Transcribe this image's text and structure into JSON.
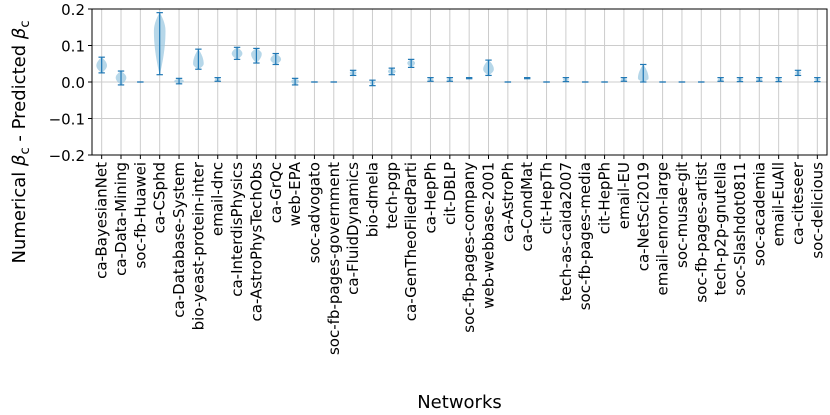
{
  "chart_data": {
    "type": "violin",
    "xlabel": "Networks",
    "ylabel_parts": [
      "Numerical ",
      "β",
      "c",
      " - Predicted ",
      "β",
      "c"
    ],
    "ylim": [
      -0.2,
      0.2
    ],
    "yticks": [
      -0.2,
      -0.1,
      0.0,
      0.1,
      0.2
    ],
    "ytick_labels": [
      "−0.2",
      "−0.1",
      "0.0",
      "0.1",
      "0.2"
    ],
    "grid": true,
    "colors": {
      "violin": "#9ecae1",
      "line": "#1f77b4",
      "grid": "#cccccc"
    },
    "categories": [
      "ca-BayesianNet",
      "ca-Data-Mining",
      "soc-fb-Huawei",
      "ca-CSphd",
      "ca-Database-System",
      "bio-yeast-protein-inter",
      "email-dnc",
      "ca-InterdisPhysics",
      "ca-AstroPhysTechObs",
      "ca-GrQc",
      "web-EPA",
      "soc-advogato",
      "soc-fb-pages-government",
      "ca-FluidDynamics",
      "bio-dmela",
      "tech-pgp",
      "ca-GenTheoFiledParti",
      "ca-HepPh",
      "cit-DBLP",
      "soc-fb-pages-company",
      "web-webbase-2001",
      "ca-AstroPh",
      "ca-CondMat",
      "cit-HepTh",
      "tech-as-caida2007",
      "soc-fb-pages-media",
      "cit-HepPh",
      "email-EU",
      "ca-NetSci2019",
      "email-enron-large",
      "soc-musae-git",
      "soc-fb-pages-artist",
      "tech-p2p-gnutella",
      "soc-Slashdot0811",
      "soc-academia",
      "email-EuAll",
      "ca-citeseer",
      "soc-delicious"
    ],
    "series": [
      {
        "min": 0.025,
        "max": 0.068,
        "median": 0.045,
        "w": 0.55
      },
      {
        "min": -0.008,
        "max": 0.03,
        "median": 0.012,
        "w": 0.55
      },
      {
        "min": 0.0,
        "max": 0.0,
        "median": 0.0,
        "w": 0.0
      },
      {
        "min": 0.02,
        "max": 0.19,
        "median": 0.14,
        "w": 0.6
      },
      {
        "min": -0.005,
        "max": 0.01,
        "median": 0.002,
        "w": 0.5
      },
      {
        "min": 0.035,
        "max": 0.09,
        "median": 0.05,
        "w": 0.55
      },
      {
        "min": 0.002,
        "max": 0.012,
        "median": 0.007,
        "w": 0.3
      },
      {
        "min": 0.062,
        "max": 0.095,
        "median": 0.078,
        "w": 0.55
      },
      {
        "min": 0.052,
        "max": 0.092,
        "median": 0.077,
        "w": 0.55
      },
      {
        "min": 0.048,
        "max": 0.078,
        "median": 0.062,
        "w": 0.55
      },
      {
        "min": -0.008,
        "max": 0.01,
        "median": 0.002,
        "w": 0.4
      },
      {
        "min": 0.0,
        "max": 0.0,
        "median": 0.0,
        "w": 0.0
      },
      {
        "min": 0.0,
        "max": 0.0,
        "median": 0.0,
        "w": 0.0
      },
      {
        "min": 0.018,
        "max": 0.032,
        "median": 0.025,
        "w": 0.35
      },
      {
        "min": -0.01,
        "max": 0.005,
        "median": -0.003,
        "w": 0.25
      },
      {
        "min": 0.02,
        "max": 0.038,
        "median": 0.029,
        "w": 0.4
      },
      {
        "min": 0.04,
        "max": 0.062,
        "median": 0.052,
        "w": 0.4
      },
      {
        "min": 0.002,
        "max": 0.012,
        "median": 0.007,
        "w": 0.3
      },
      {
        "min": 0.002,
        "max": 0.012,
        "median": 0.007,
        "w": 0.3
      },
      {
        "min": 0.009,
        "max": 0.012,
        "median": 0.01,
        "w": 0.0
      },
      {
        "min": 0.018,
        "max": 0.06,
        "median": 0.035,
        "w": 0.55
      },
      {
        "min": 0.0,
        "max": 0.0,
        "median": 0.0,
        "w": 0.0
      },
      {
        "min": 0.009,
        "max": 0.012,
        "median": 0.01,
        "w": 0.0
      },
      {
        "min": 0.0,
        "max": 0.0,
        "median": 0.0,
        "w": 0.0
      },
      {
        "min": 0.001,
        "max": 0.012,
        "median": 0.006,
        "w": 0.3
      },
      {
        "min": 0.0,
        "max": 0.0,
        "median": 0.0,
        "w": 0.0
      },
      {
        "min": 0.0,
        "max": 0.0,
        "median": 0.0,
        "w": 0.0
      },
      {
        "min": 0.002,
        "max": 0.012,
        "median": 0.006,
        "w": 0.3
      },
      {
        "min": 0.0,
        "max": 0.048,
        "median": 0.01,
        "w": 0.55
      },
      {
        "min": 0.0,
        "max": 0.0,
        "median": 0.0,
        "w": 0.0
      },
      {
        "min": 0.0,
        "max": 0.0,
        "median": 0.0,
        "w": 0.0
      },
      {
        "min": 0.0,
        "max": 0.0,
        "median": 0.0,
        "w": 0.0
      },
      {
        "min": 0.002,
        "max": 0.012,
        "median": 0.006,
        "w": 0.3
      },
      {
        "min": 0.001,
        "max": 0.012,
        "median": 0.006,
        "w": 0.3
      },
      {
        "min": 0.002,
        "max": 0.012,
        "median": 0.006,
        "w": 0.3
      },
      {
        "min": 0.001,
        "max": 0.012,
        "median": 0.006,
        "w": 0.3
      },
      {
        "min": 0.018,
        "max": 0.032,
        "median": 0.025,
        "w": 0.3
      },
      {
        "min": 0.001,
        "max": 0.012,
        "median": 0.006,
        "w": 0.3
      }
    ]
  }
}
